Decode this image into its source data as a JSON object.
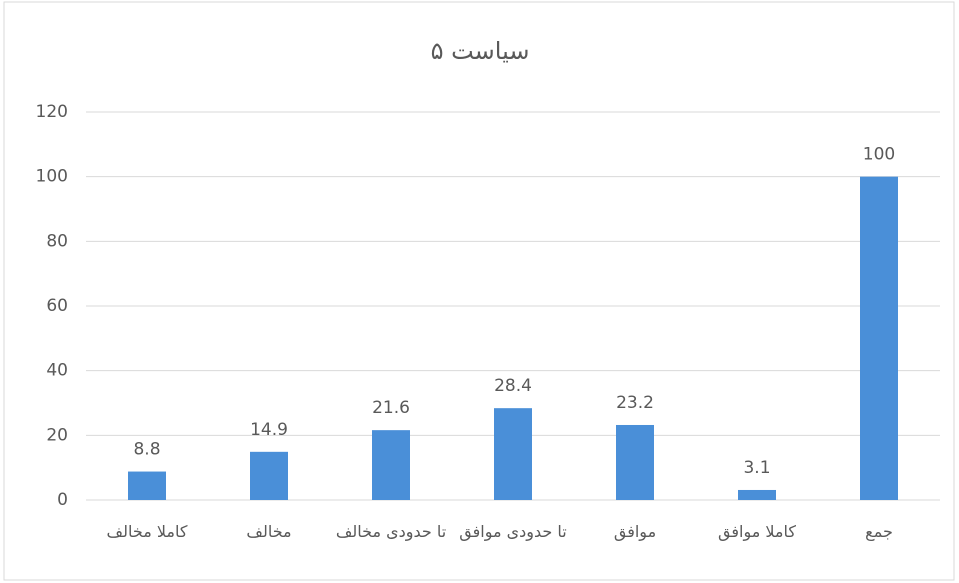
{
  "chart_data": {
    "type": "bar",
    "title": "سیاست ۵",
    "categories": [
      "کاملا مخالف",
      "مخالف",
      "تا حدودی مخالف",
      "تا حدودی موافق",
      "موافق",
      "کاملا موافق",
      "جمع"
    ],
    "values": [
      8.8,
      14.9,
      21.6,
      28.4,
      23.2,
      3.1,
      100
    ],
    "color": "#4a8fd8",
    "ylim": [
      0,
      120
    ],
    "yticks": [
      0,
      20,
      40,
      60,
      80,
      100,
      120
    ],
    "grid": true
  }
}
